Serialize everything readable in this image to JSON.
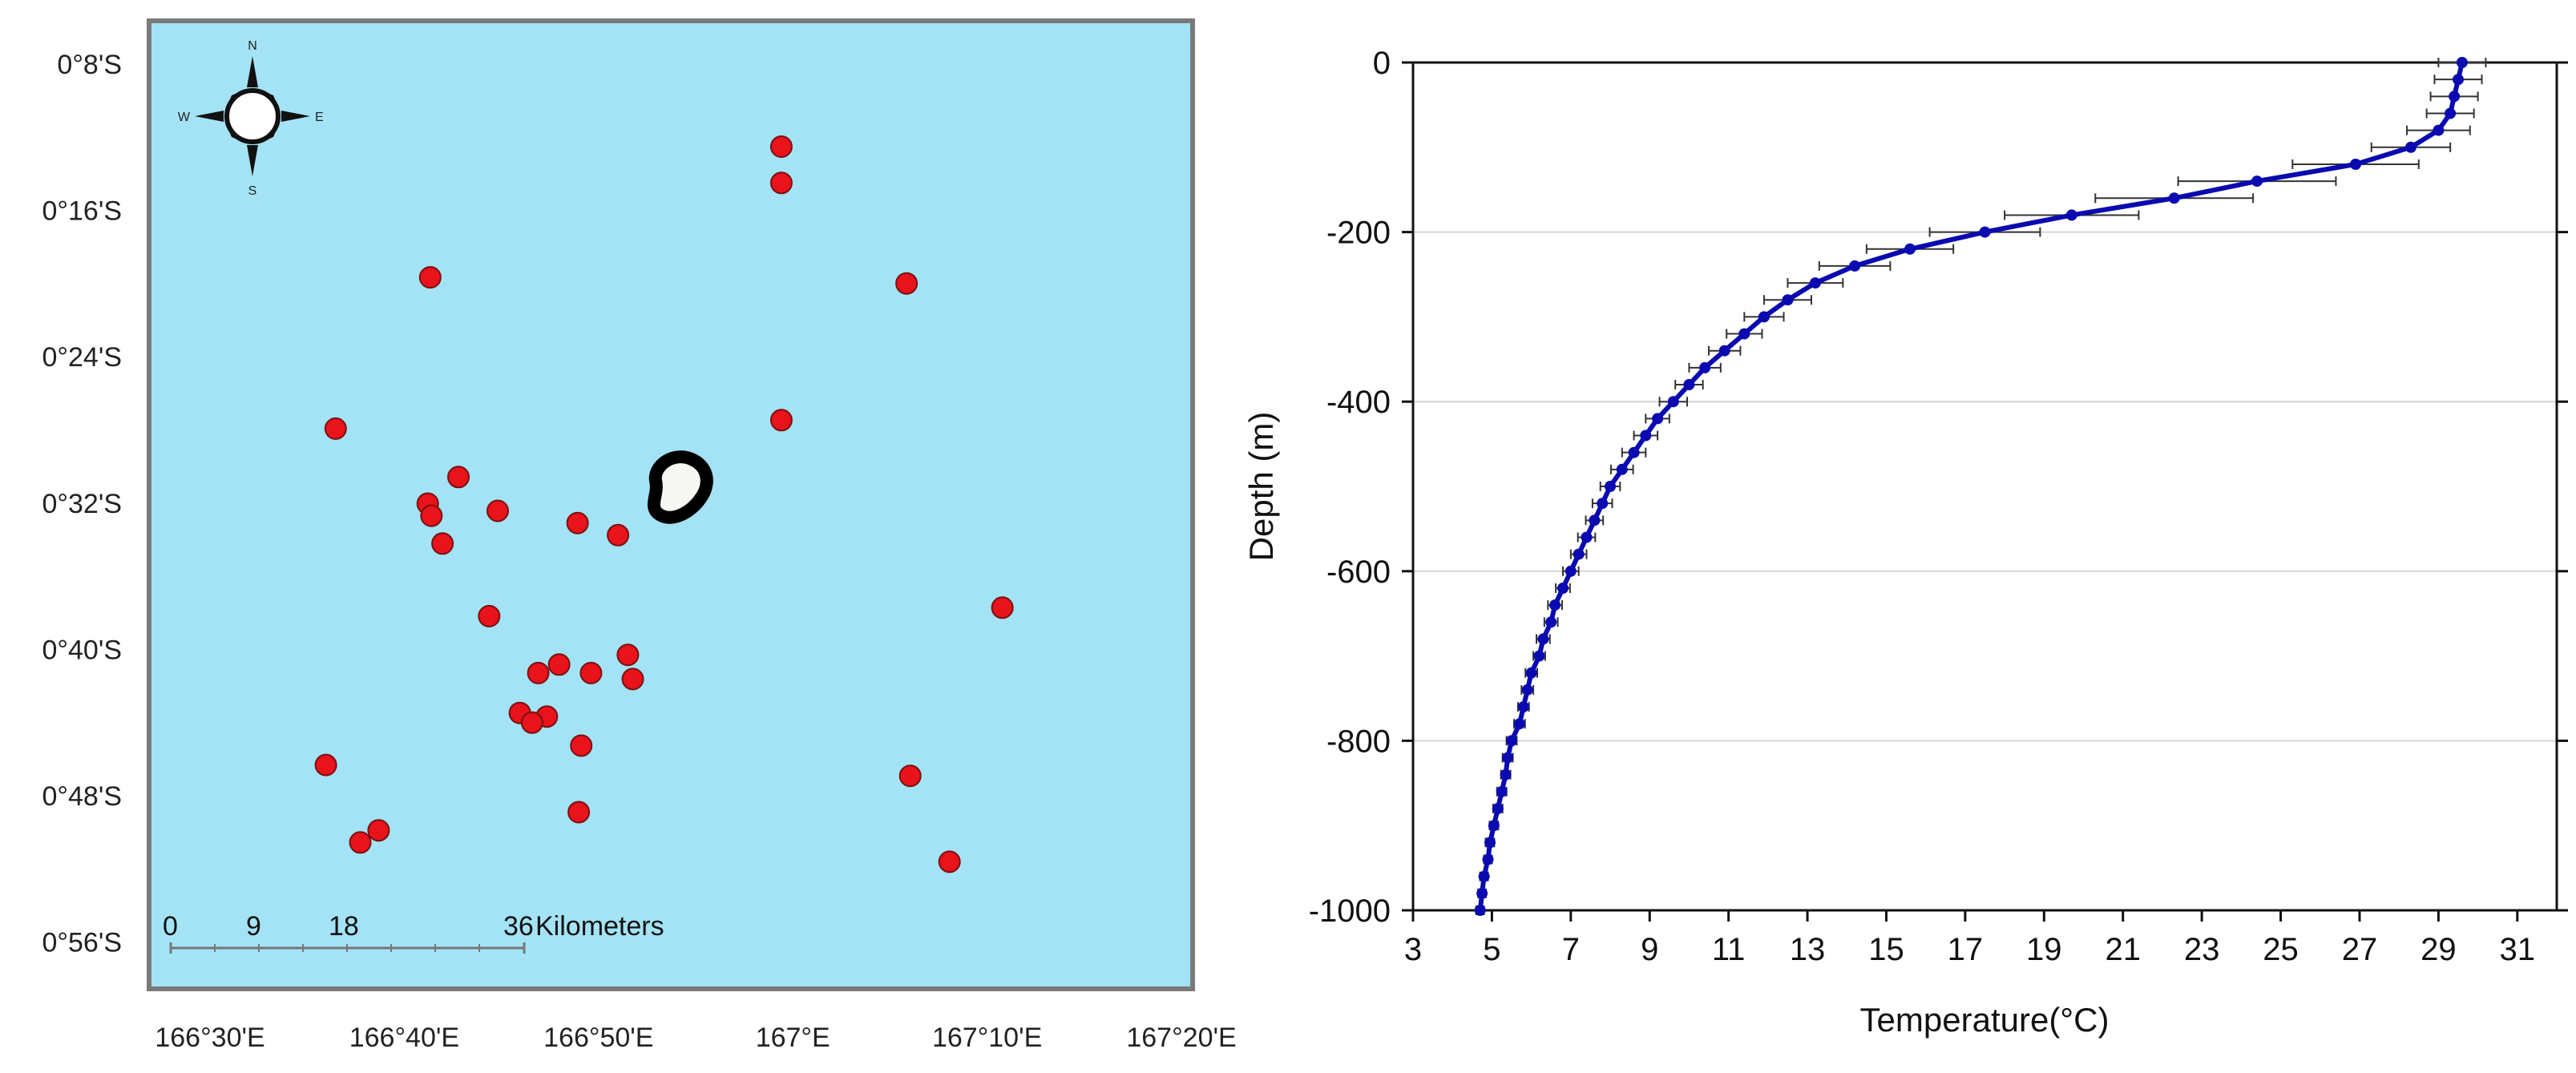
{
  "map": {
    "lat_labels": [
      "0°8'S",
      "0°16'S",
      "0°24'S",
      "0°32'S",
      "0°40'S",
      "0°48'S",
      "0°56'S"
    ],
    "lon_labels": [
      "166°30'E",
      "166°40'E",
      "166°50'E",
      "167°E",
      "167°10'E",
      "167°20'E"
    ],
    "compass": {
      "n": "N",
      "s": "S",
      "e": "E",
      "w": "W"
    },
    "scale_bar": {
      "ticks": [
        "0",
        "9",
        "18",
        "36"
      ],
      "unit": "Kilometers"
    },
    "colors": {
      "water": "#a3e3f5",
      "station": "#e8131b",
      "island_fill": "#f6f6f2",
      "island_outline": "#000000"
    }
  },
  "chart_data": [
    {
      "type": "scatter",
      "description_type": "station-map",
      "x_range": [
        166.483,
        167.333
      ],
      "y_range": [
        -0.933,
        -0.133
      ],
      "points": [
        {
          "lon": 166.998,
          "lat": -0.237
        },
        {
          "lon": 166.998,
          "lat": -0.267
        },
        {
          "lon": 166.712,
          "lat": -0.345
        },
        {
          "lon": 167.1,
          "lat": -0.35
        },
        {
          "lon": 166.635,
          "lat": -0.47
        },
        {
          "lon": 166.998,
          "lat": -0.463
        },
        {
          "lon": 166.735,
          "lat": -0.51
        },
        {
          "lon": 166.71,
          "lat": -0.532
        },
        {
          "lon": 166.713,
          "lat": -0.542
        },
        {
          "lon": 166.767,
          "lat": -0.538
        },
        {
          "lon": 166.832,
          "lat": -0.548
        },
        {
          "lon": 166.865,
          "lat": -0.558
        },
        {
          "lon": 166.722,
          "lat": -0.565
        },
        {
          "lon": 166.76,
          "lat": -0.625
        },
        {
          "lon": 167.178,
          "lat": -0.618
        },
        {
          "lon": 166.873,
          "lat": -0.657
        },
        {
          "lon": 166.817,
          "lat": -0.665
        },
        {
          "lon": 166.8,
          "lat": -0.672
        },
        {
          "lon": 166.843,
          "lat": -0.672
        },
        {
          "lon": 166.877,
          "lat": -0.677
        },
        {
          "lon": 166.785,
          "lat": -0.705
        },
        {
          "lon": 166.807,
          "lat": -0.708
        },
        {
          "lon": 166.795,
          "lat": -0.713
        },
        {
          "lon": 166.835,
          "lat": -0.732
        },
        {
          "lon": 166.627,
          "lat": -0.748
        },
        {
          "lon": 167.103,
          "lat": -0.757
        },
        {
          "lon": 166.833,
          "lat": -0.787
        },
        {
          "lon": 166.67,
          "lat": -0.802
        },
        {
          "lon": 166.655,
          "lat": -0.812
        },
        {
          "lon": 167.135,
          "lat": -0.828
        }
      ]
    },
    {
      "type": "line",
      "xlabel": "Temperature(°C)",
      "ylabel": "Depth (m)",
      "xlim": [
        3,
        32
      ],
      "ylim": [
        -1000,
        0
      ],
      "xticks": [
        3,
        5,
        7,
        9,
        11,
        13,
        15,
        17,
        19,
        21,
        23,
        25,
        27,
        29,
        31
      ],
      "yticks": [
        0,
        -200,
        -400,
        -600,
        -800,
        -1000
      ],
      "grid": "horizontal",
      "line_color": "#0a0ab0",
      "errorbar_color": "#333333",
      "series": [
        {
          "depth": [
            0,
            -20,
            -40,
            -60,
            -80,
            -100,
            -120,
            -140,
            -160,
            -180,
            -200,
            -220,
            -240,
            -260,
            -280,
            -300,
            -320,
            -340,
            -360,
            -380,
            -400,
            -420,
            -440,
            -460,
            -480,
            -500,
            -520,
            -540,
            -560,
            -580,
            -600,
            -620,
            -640,
            -660,
            -680,
            -700,
            -720,
            -740,
            -760,
            -780,
            -800,
            -820,
            -840,
            -860,
            -880,
            -900,
            -920,
            -940,
            -960,
            -980,
            -1000
          ],
          "temperature": [
            29.6,
            29.5,
            29.4,
            29.3,
            29.0,
            28.3,
            26.9,
            24.4,
            22.3,
            19.7,
            17.5,
            15.6,
            14.2,
            13.2,
            12.5,
            11.9,
            11.4,
            10.9,
            10.4,
            10.0,
            9.6,
            9.2,
            8.9,
            8.6,
            8.3,
            8.0,
            7.8,
            7.6,
            7.4,
            7.2,
            7.0,
            6.8,
            6.6,
            6.5,
            6.3,
            6.2,
            6.0,
            5.9,
            5.8,
            5.7,
            5.5,
            5.4,
            5.35,
            5.25,
            5.15,
            5.05,
            4.95,
            4.9,
            4.8,
            4.75,
            4.7
          ],
          "error": [
            0.6,
            0.6,
            0.6,
            0.6,
            0.8,
            1.0,
            1.6,
            2.0,
            2.0,
            1.7,
            1.4,
            1.1,
            0.9,
            0.7,
            0.6,
            0.5,
            0.45,
            0.4,
            0.4,
            0.35,
            0.35,
            0.3,
            0.3,
            0.3,
            0.28,
            0.25,
            0.25,
            0.22,
            0.22,
            0.2,
            0.2,
            0.18,
            0.18,
            0.17,
            0.17,
            0.15,
            0.15,
            0.15,
            0.14,
            0.14,
            0.13,
            0.13,
            0.12,
            0.12,
            0.12,
            0.11,
            0.11,
            0.1,
            0.1,
            0.1,
            0.1
          ]
        }
      ]
    }
  ]
}
